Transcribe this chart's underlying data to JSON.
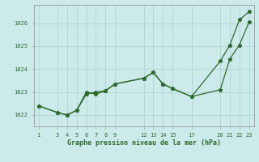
{
  "line1_x": [
    1,
    3,
    4,
    5,
    6,
    7,
    8,
    9,
    12,
    13,
    14,
    15,
    17,
    20,
    21,
    22,
    23
  ],
  "line1_y": [
    1022.4,
    1022.1,
    1022.0,
    1022.2,
    1022.9,
    1023.0,
    1023.05,
    1023.35,
    1023.6,
    1023.85,
    1023.35,
    1023.15,
    1022.8,
    1023.1,
    1024.45,
    1025.05,
    1026.05
  ],
  "line2_x": [
    1,
    3,
    4,
    5,
    6,
    7,
    8,
    9,
    12,
    13,
    14,
    15,
    17,
    20,
    21,
    22,
    23
  ],
  "line2_y": [
    1022.4,
    1022.1,
    1022.0,
    1022.2,
    1023.0,
    1022.9,
    1023.05,
    1023.35,
    1023.6,
    1023.85,
    1023.35,
    1023.15,
    1022.8,
    1024.35,
    1025.05,
    1026.15,
    1026.5
  ],
  "line_color": "#2d6a2d",
  "bg_color": "#cdeaea",
  "grid_color": "#aed4d4",
  "title": "Graphe pression niveau de la mer (hPa)",
  "xticks": [
    1,
    3,
    4,
    5,
    6,
    7,
    8,
    9,
    12,
    13,
    14,
    15,
    17,
    20,
    21,
    22,
    23
  ],
  "yticks": [
    1022,
    1023,
    1024,
    1025,
    1026
  ],
  "ylim": [
    1021.5,
    1026.8
  ],
  "xlim": [
    0.5,
    23.5
  ]
}
